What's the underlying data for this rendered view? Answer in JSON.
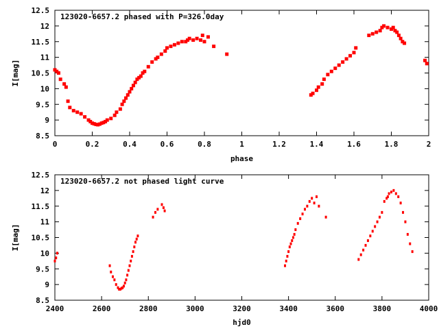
{
  "chart_data": [
    {
      "type": "scatter",
      "title": "123020-6657.2 phased with P=326.0day",
      "xlabel": "phase",
      "ylabel": "I[mag]",
      "xlim": [
        0,
        2
      ],
      "ylim": [
        12.5,
        8.5
      ],
      "y_inverted": true,
      "grid": false,
      "legend": "none",
      "marker_color": "#ff0000",
      "x_ticks": [
        {
          "value": 0,
          "label": "0"
        },
        {
          "value": 0.2,
          "label": "0.2"
        },
        {
          "value": 0.4,
          "label": "0.4"
        },
        {
          "value": 0.6,
          "label": "0.6"
        },
        {
          "value": 0.8,
          "label": "0.8"
        },
        {
          "value": 1.0,
          "label": "1"
        },
        {
          "value": 1.2,
          "label": "1.2"
        },
        {
          "value": 1.4,
          "label": "1.4"
        },
        {
          "value": 1.6,
          "label": "1.6"
        },
        {
          "value": 1.8,
          "label": "1.8"
        },
        {
          "value": 2.0,
          "label": "2"
        }
      ],
      "y_ticks": [
        {
          "value": 8.5,
          "label": "8.5"
        },
        {
          "value": 9,
          "label": "9"
        },
        {
          "value": 9.5,
          "label": "9.5"
        },
        {
          "value": 10,
          "label": "10"
        },
        {
          "value": 10.5,
          "label": "10.5"
        },
        {
          "value": 11,
          "label": "11"
        },
        {
          "value": 11.5,
          "label": "11.5"
        },
        {
          "value": 12,
          "label": "12"
        },
        {
          "value": 12.5,
          "label": "12.5"
        }
      ],
      "series": [
        {
          "x": [
            0.0,
            0.01,
            0.02,
            0.03,
            0.05,
            0.06,
            0.07,
            0.08,
            0.1,
            0.12,
            0.14,
            0.16,
            0.18,
            0.19,
            0.2,
            0.21,
            0.22,
            0.23,
            0.24,
            0.25,
            0.26,
            0.27,
            0.28,
            0.3,
            0.32,
            0.33,
            0.35,
            0.36,
            0.37,
            0.38,
            0.39,
            0.4,
            0.41,
            0.42,
            0.43,
            0.44,
            0.45,
            0.46,
            0.47,
            0.48,
            0.5,
            0.52,
            0.54,
            0.55,
            0.57,
            0.59,
            0.6,
            0.62,
            0.64,
            0.66,
            0.68,
            0.7,
            0.71,
            0.72,
            0.74,
            0.76,
            0.78,
            0.79,
            0.8,
            0.82,
            0.85,
            0.92,
            1.37,
            1.38,
            1.4,
            1.41,
            1.43,
            1.44,
            1.46,
            1.48,
            1.5,
            1.52,
            1.54,
            1.56,
            1.58,
            1.6,
            1.61,
            1.68,
            1.7,
            1.72,
            1.74,
            1.75,
            1.76,
            1.78,
            1.8,
            1.81,
            1.82,
            1.83,
            1.84,
            1.85,
            1.86,
            1.87,
            1.98,
            1.99
          ],
          "y": [
            10.6,
            10.55,
            10.5,
            10.3,
            10.15,
            10.05,
            9.6,
            9.4,
            9.3,
            9.25,
            9.2,
            9.1,
            9.0,
            8.95,
            8.9,
            8.88,
            8.86,
            8.85,
            8.87,
            8.9,
            8.92,
            8.95,
            9.0,
            9.05,
            9.15,
            9.25,
            9.35,
            9.5,
            9.6,
            9.7,
            9.8,
            9.9,
            10.0,
            10.1,
            10.2,
            10.3,
            10.35,
            10.4,
            10.5,
            10.55,
            10.7,
            10.85,
            10.95,
            11.0,
            11.1,
            11.2,
            11.3,
            11.35,
            11.4,
            11.45,
            11.5,
            11.5,
            11.55,
            11.6,
            11.55,
            11.6,
            11.55,
            11.7,
            11.5,
            11.65,
            11.35,
            11.1,
            9.8,
            9.85,
            9.95,
            10.05,
            10.15,
            10.3,
            10.45,
            10.55,
            10.65,
            10.75,
            10.85,
            10.95,
            11.05,
            11.15,
            11.3,
            11.7,
            11.75,
            11.8,
            11.85,
            11.95,
            12.0,
            11.95,
            11.9,
            11.95,
            11.85,
            11.8,
            11.7,
            11.6,
            11.5,
            11.45,
            10.9,
            10.8
          ]
        }
      ]
    },
    {
      "type": "scatter",
      "title": "123020-6657.2 not phased light curve",
      "xlabel": "hjd0",
      "ylabel": "I[mag]",
      "xlim": [
        2400,
        4000
      ],
      "ylim": [
        12.5,
        8.5
      ],
      "y_inverted": true,
      "grid": false,
      "legend": "none",
      "marker_color": "#ff0000",
      "x_ticks": [
        {
          "value": 2400,
          "label": "2400"
        },
        {
          "value": 2600,
          "label": "2600"
        },
        {
          "value": 2800,
          "label": "2800"
        },
        {
          "value": 3000,
          "label": "3000"
        },
        {
          "value": 3200,
          "label": "3200"
        },
        {
          "value": 3400,
          "label": "3400"
        },
        {
          "value": 3600,
          "label": "3600"
        },
        {
          "value": 3800,
          "label": "3800"
        },
        {
          "value": 4000,
          "label": "4000"
        }
      ],
      "y_ticks": [
        {
          "value": 8.5,
          "label": "8.5"
        },
        {
          "value": 9,
          "label": "9"
        },
        {
          "value": 9.5,
          "label": "9.5"
        },
        {
          "value": 10,
          "label": "10"
        },
        {
          "value": 10.5,
          "label": "10.5"
        },
        {
          "value": 11,
          "label": "11"
        },
        {
          "value": 11.5,
          "label": "11.5"
        },
        {
          "value": 12,
          "label": "12"
        },
        {
          "value": 12.5,
          "label": "12.5"
        }
      ],
      "series": [
        {
          "x": [
            2400,
            2405,
            2410,
            2635,
            2640,
            2648,
            2655,
            2662,
            2670,
            2675,
            2680,
            2685,
            2690,
            2695,
            2700,
            2705,
            2710,
            2715,
            2720,
            2725,
            2730,
            2735,
            2740,
            2745,
            2750,
            2755,
            2820,
            2830,
            2840,
            2858,
            2865,
            2870,
            3385,
            3390,
            3395,
            3400,
            3405,
            3410,
            3415,
            3420,
            3425,
            3430,
            3440,
            3450,
            3460,
            3470,
            3480,
            3490,
            3500,
            3510,
            3520,
            3530,
            3560,
            3700,
            3710,
            3720,
            3730,
            3740,
            3750,
            3760,
            3770,
            3780,
            3790,
            3800,
            3810,
            3820,
            3825,
            3830,
            3840,
            3850,
            3860,
            3870,
            3880,
            3890,
            3900,
            3910,
            3920,
            3930
          ],
          "y": [
            9.75,
            9.85,
            10.0,
            9.6,
            9.4,
            9.25,
            9.15,
            9.0,
            8.9,
            8.85,
            8.85,
            8.88,
            8.9,
            8.95,
            9.05,
            9.15,
            9.3,
            9.45,
            9.6,
            9.75,
            9.9,
            10.05,
            10.2,
            10.35,
            10.45,
            10.55,
            11.15,
            11.3,
            11.4,
            11.55,
            11.45,
            11.35,
            9.6,
            9.75,
            9.9,
            10.05,
            10.2,
            10.3,
            10.4,
            10.5,
            10.6,
            10.75,
            10.95,
            11.1,
            11.25,
            11.4,
            11.5,
            11.65,
            11.75,
            11.6,
            11.8,
            11.5,
            11.15,
            9.8,
            9.95,
            10.1,
            10.25,
            10.4,
            10.55,
            10.7,
            10.85,
            11.0,
            11.15,
            11.3,
            11.65,
            11.75,
            11.8,
            11.9,
            11.95,
            12.0,
            11.9,
            11.8,
            11.6,
            11.3,
            11.0,
            10.6,
            10.3,
            10.05
          ]
        }
      ]
    }
  ]
}
